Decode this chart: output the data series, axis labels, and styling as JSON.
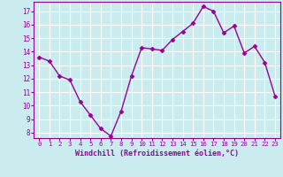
{
  "x": [
    0,
    1,
    2,
    3,
    4,
    5,
    6,
    7,
    8,
    9,
    10,
    11,
    12,
    13,
    14,
    15,
    16,
    17,
    18,
    19,
    20,
    21,
    22,
    23
  ],
  "y": [
    13.6,
    13.3,
    12.2,
    11.9,
    10.3,
    9.3,
    8.3,
    7.75,
    9.6,
    12.2,
    14.3,
    14.2,
    14.1,
    14.9,
    15.5,
    16.1,
    17.35,
    17.0,
    15.4,
    15.9,
    13.9,
    14.4,
    13.2,
    10.7
  ],
  "line_color": "#990099",
  "marker_color": "#990099",
  "bg_color": "#cbecef",
  "grid_color": "#aadddd",
  "xlabel": "Windchill (Refroidissement éolien,°C)",
  "ylim_min": 7.6,
  "ylim_max": 17.7,
  "xlim_min": -0.5,
  "xlim_max": 23.5,
  "yticks": [
    8,
    9,
    10,
    11,
    12,
    13,
    14,
    15,
    16,
    17
  ],
  "xticks": [
    0,
    1,
    2,
    3,
    4,
    5,
    6,
    7,
    8,
    9,
    10,
    11,
    12,
    13,
    14,
    15,
    16,
    17,
    18,
    19,
    20,
    21,
    22,
    23
  ],
  "label_color": "#990099",
  "axis_color": "#990099",
  "xlabel_fontsize": 6.0,
  "tick_fontsize": 5.5,
  "linewidth": 1.0,
  "markersize": 2.5
}
